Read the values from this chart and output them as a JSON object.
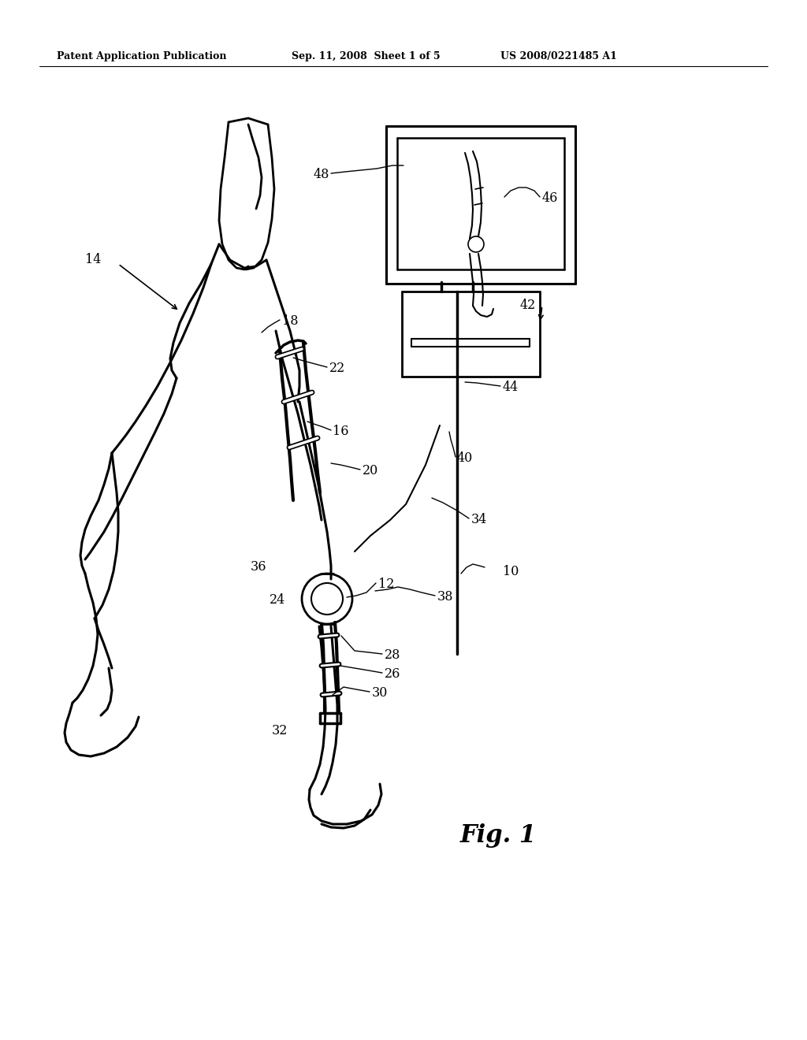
{
  "header_left": "Patent Application Publication",
  "header_mid": "Sep. 11, 2008  Sheet 1 of 5",
  "header_right": "US 2008/0221485 A1",
  "fig_label": "Fig. 1",
  "background_color": "#ffffff"
}
